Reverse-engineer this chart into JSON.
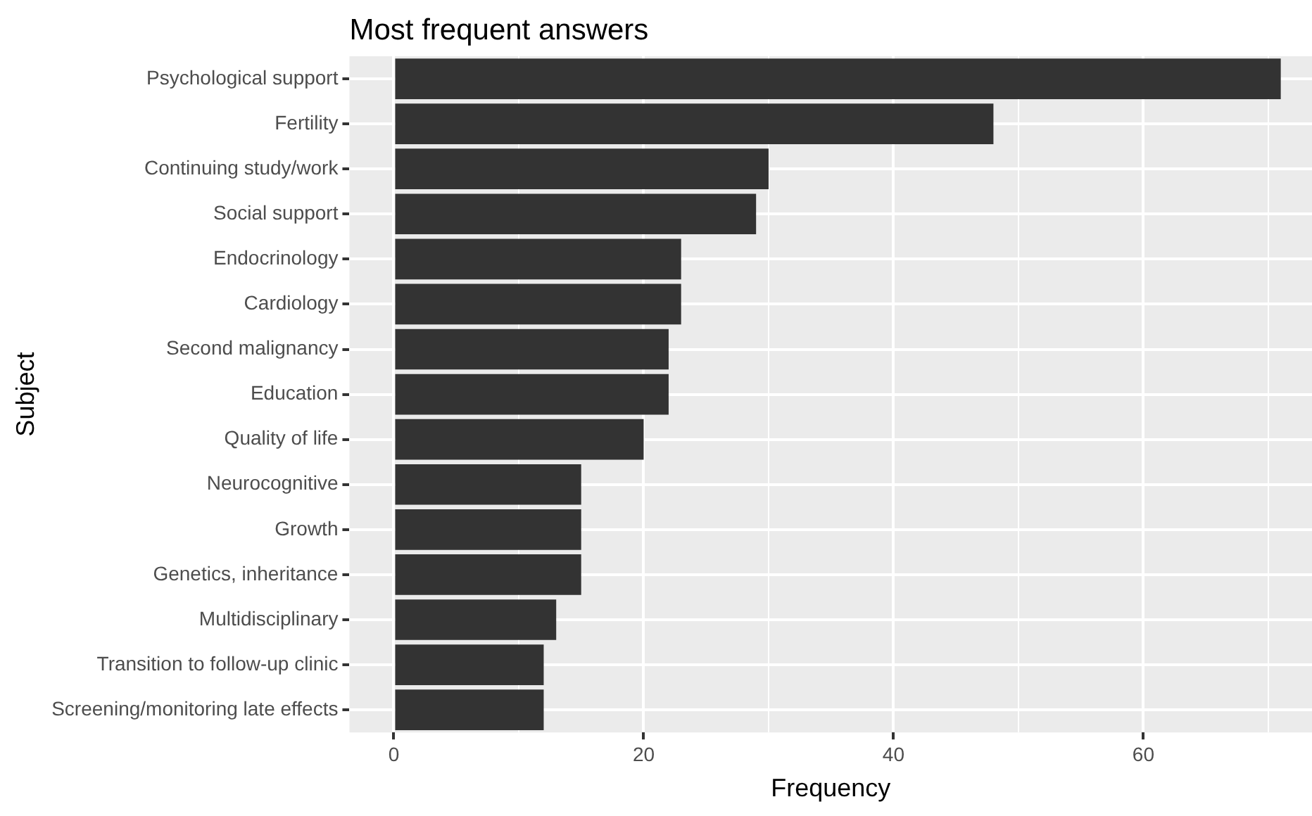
{
  "chart_data": {
    "type": "bar",
    "orientation": "horizontal",
    "title": "Most frequent answers",
    "xlabel": "Frequency",
    "ylabel": "Subject",
    "categories": [
      "Psychological support",
      "Fertility",
      "Continuing study/work",
      "Social support",
      "Endocrinology",
      "Cardiology",
      "Second malignancy",
      "Education",
      "Quality of life",
      "Neurocognitive",
      "Growth",
      "Genetics, inheritance",
      "Multidisciplinary",
      "Transition to follow-up clinic",
      "Screening/monitoring late effects"
    ],
    "values": [
      71,
      48,
      30,
      29,
      23,
      23,
      22,
      22,
      20,
      15,
      15,
      15,
      13,
      12,
      12
    ],
    "color": "#333333",
    "xlim": [
      -3.55,
      73.5
    ],
    "xticks": [
      0,
      {
        "value": 10,
        "label": null
      },
      20,
      {
        "value": 30,
        "label": null
      },
      40,
      {
        "value": 50,
        "label": null
      },
      60,
      {
        "value": 70,
        "label": null
      }
    ],
    "grid": true
  }
}
